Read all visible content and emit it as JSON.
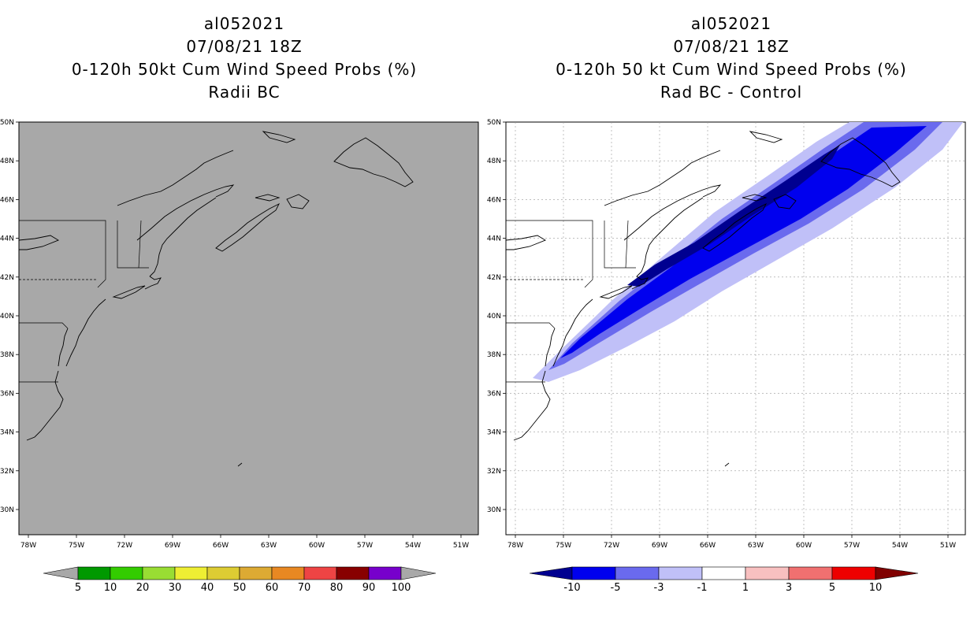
{
  "left_panel": {
    "title_lines": [
      "al052021",
      "07/08/21 18Z",
      "0-120h 50kt Cum Wind Speed Probs (%)",
      "Radii BC"
    ],
    "lat_labels": [
      "50N",
      "48N",
      "46N",
      "44N",
      "42N",
      "40N",
      "38N",
      "36N",
      "34N",
      "32N",
      "30N"
    ],
    "lon_labels": [
      "78W",
      "75W",
      "72W",
      "69W",
      "66W",
      "63W",
      "60W",
      "57W",
      "54W",
      "51W"
    ],
    "colorbar": {
      "colors": [
        "#009900",
        "#33cc00",
        "#99dd33",
        "#eeee33",
        "#ddcc33",
        "#ddaa33",
        "#e88822",
        "#ee4444",
        "#880000",
        "#7700cc"
      ],
      "end_color": "#a8a8a8",
      "labels": [
        "5",
        "10",
        "20",
        "30",
        "40",
        "50",
        "60",
        "70",
        "80",
        "90",
        "100"
      ]
    },
    "background": "#a8a8a8"
  },
  "right_panel": {
    "title_lines": [
      "al052021",
      "07/08/21 18Z",
      "0-120h 50 kt Cum Wind Speed Probs (%)",
      "Rad BC - Control"
    ],
    "lat_labels": [
      "50N",
      "48N",
      "46N",
      "44N",
      "42N",
      "40N",
      "38N",
      "36N",
      "34N",
      "32N",
      "30N"
    ],
    "lon_labels": [
      "78W",
      "75W",
      "72W",
      "69W",
      "66W",
      "63W",
      "60W",
      "57W",
      "54W",
      "51W"
    ],
    "colorbar": {
      "colors": [
        "#0000ee",
        "#6a6aee",
        "#c0c0f8",
        "#ffffff",
        "#f8c0c0",
        "#f07070",
        "#ee0000"
      ],
      "end_low": "#000090",
      "end_high": "#800000",
      "labels": [
        "-10",
        "-5",
        "-3",
        "-1",
        "1",
        "3",
        "5",
        "10"
      ]
    },
    "shading_colors": [
      "#c0c0f8",
      "#6a6aee",
      "#0000ee",
      "#000090"
    ]
  }
}
